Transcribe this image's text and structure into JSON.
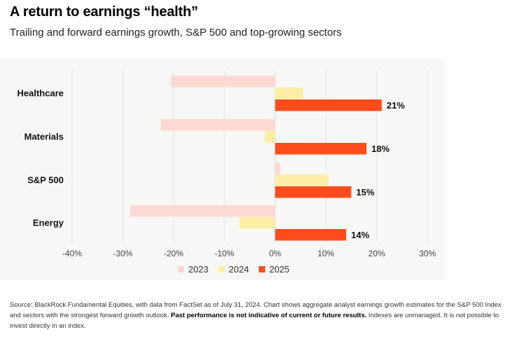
{
  "header": {
    "title": "A return to earnings “health”",
    "subtitle": "Trailing and forward earnings growth, S&P 500 and top-growing sectors"
  },
  "colors": {
    "2023": "#fcd9d4",
    "2024": "#fdeea6",
    "2025": "#fe4c1c"
  },
  "chart_data": {
    "type": "bar",
    "orientation": "horizontal",
    "categories": [
      "Healthcare",
      "Materials",
      "S&P 500",
      "Energy"
    ],
    "series": [
      {
        "name": "2023",
        "values": [
          -20.5,
          -22.5,
          1.0,
          -28.5
        ]
      },
      {
        "name": "2024",
        "values": [
          5.5,
          -2.0,
          10.5,
          -7.0
        ]
      },
      {
        "name": "2025",
        "values": [
          21,
          18,
          15,
          14
        ]
      }
    ],
    "data_labels": [
      "21%",
      "18%",
      "15%",
      "14%"
    ],
    "xlim": [
      -40,
      30
    ],
    "xticks": [
      -40,
      -30,
      -20,
      -10,
      0,
      10,
      20,
      30
    ],
    "xtick_labels": [
      "-40%",
      "-30%",
      "-20%",
      "-10%",
      "0%",
      "10%",
      "20%",
      "30%"
    ],
    "grid": true,
    "legend": "bottom"
  },
  "legend": [
    {
      "label": "2023",
      "color_key": "2023"
    },
    {
      "label": "2024",
      "color_key": "2024"
    },
    {
      "label": "2025",
      "color_key": "2025"
    }
  ],
  "source": {
    "prefix": "Source: BlackRock Fundamental Equities, with data from FactSet as of July 31, 2024. Chart shows aggregate analyst earnings growth estimates for the S&P 500 Index and sectors with the strongest forward growth outlook. ",
    "bold": "Past performance is not indicative of current or future results.",
    "suffix": " Indexes are unmanaged. It is not possible to invest directly in an index."
  }
}
